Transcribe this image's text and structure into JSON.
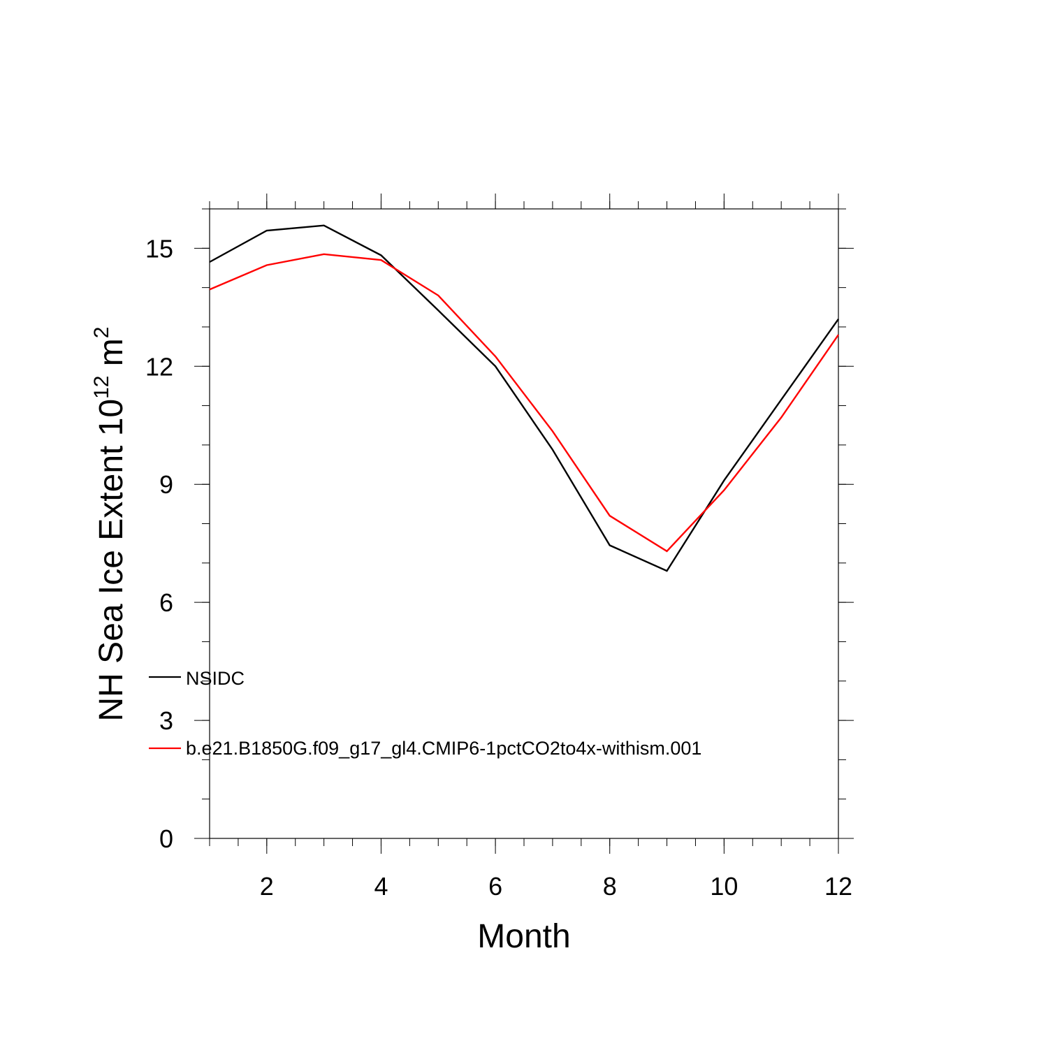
{
  "chart_data": {
    "type": "line",
    "xlabel": "Month",
    "ylabel": {
      "prefix": "NH Sea Ice Extent 10",
      "superscript": "12",
      "unit": " m",
      "unit_superscript": "2"
    },
    "xlim": [
      1,
      12
    ],
    "ylim": [
      0,
      16
    ],
    "x_ticks": [
      2,
      4,
      6,
      8,
      10,
      12
    ],
    "y_ticks": [
      0,
      3,
      6,
      9,
      12,
      15
    ],
    "grid": false,
    "legend_position": "lower-left inside plot",
    "x": [
      1,
      2,
      3,
      4,
      5,
      6,
      7,
      8,
      9,
      10,
      11,
      12
    ],
    "series": [
      {
        "name": "NSIDC",
        "color": "#000000",
        "values": [
          14.65,
          15.45,
          15.58,
          14.82,
          13.42,
          12.0,
          9.88,
          7.45,
          6.8,
          9.1,
          11.15,
          13.2
        ]
      },
      {
        "name": "b.e21.B1850G.f09_g17_gl4.CMIP6-1pctCO2to4x-withism.001",
        "color": "#ff0000",
        "values": [
          13.95,
          14.57,
          14.85,
          14.7,
          13.8,
          12.25,
          10.35,
          8.2,
          7.3,
          8.85,
          10.7,
          12.8
        ]
      }
    ]
  }
}
